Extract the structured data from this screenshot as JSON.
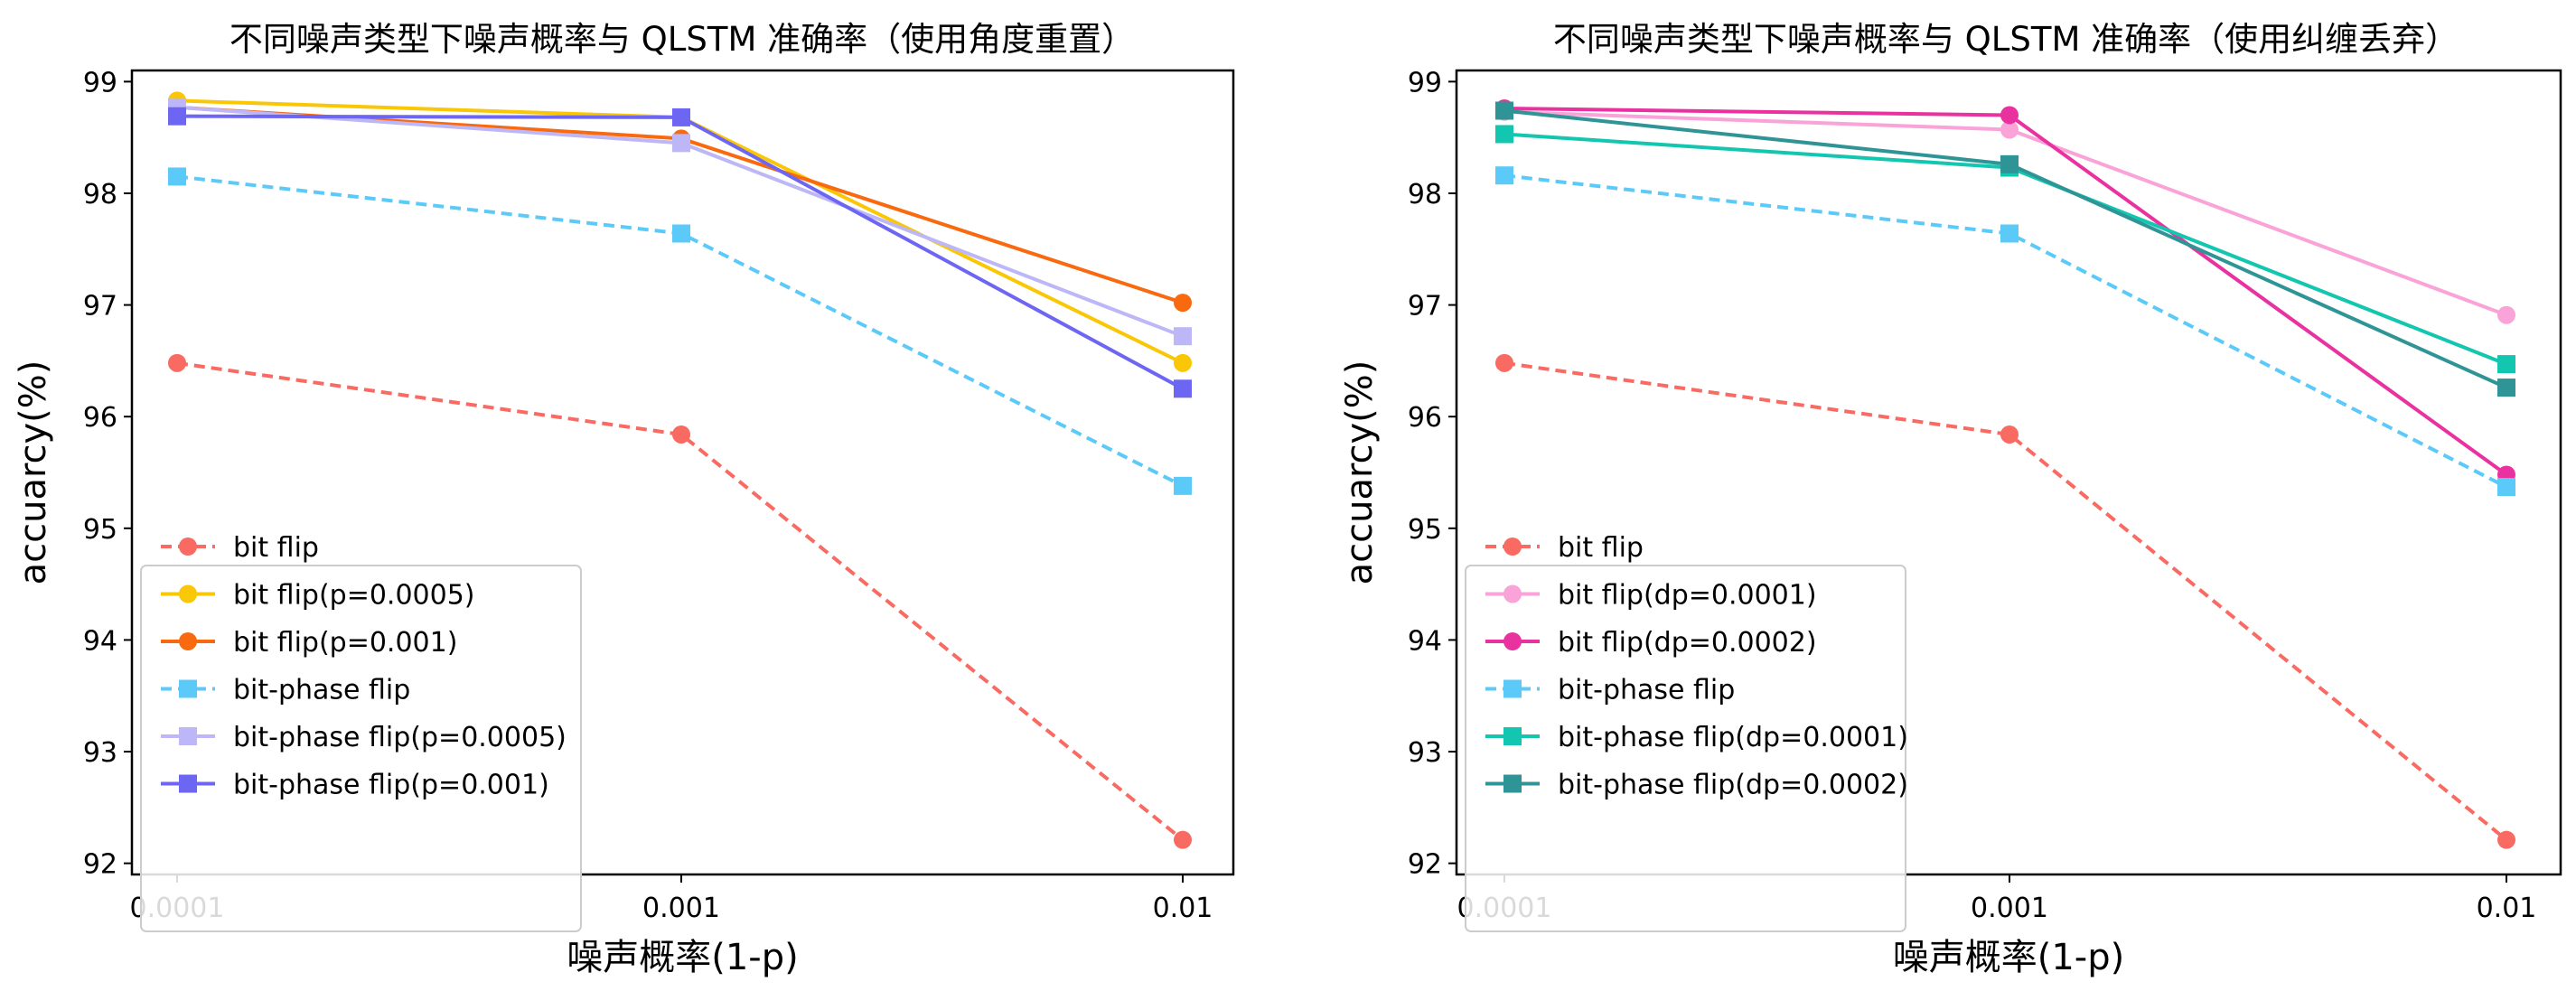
{
  "chart_data": [
    {
      "type": "line",
      "title": "不同噪声类型下噪声概率与 QLSTM 准确率（使用角度重置）",
      "xlabel": "噪声概率(1-p)",
      "ylabel": "accuarcy(%)",
      "x": [
        "0.0001",
        "0.001",
        "0.01"
      ],
      "xscale": "log",
      "ylim": [
        91.9,
        99.1
      ],
      "yticks": [
        92,
        93,
        94,
        95,
        96,
        97,
        98,
        99
      ],
      "grid": false,
      "legend_position": "lower-left",
      "series": [
        {
          "name": "bit flip",
          "values": [
            96.48,
            95.84,
            92.21
          ],
          "color": "#f96a63",
          "linestyle": "dashed",
          "marker": "circle"
        },
        {
          "name": "bit flip(p=0.0005)",
          "values": [
            98.83,
            98.68,
            96.48
          ],
          "color": "#f9c706",
          "linestyle": "solid",
          "marker": "circle"
        },
        {
          "name": "bit flip(p=0.001)",
          "values": [
            98.77,
            98.49,
            97.02
          ],
          "color": "#f9690f",
          "linestyle": "solid",
          "marker": "circle"
        },
        {
          "name": "bit-phase flip",
          "values": [
            98.15,
            97.64,
            95.38
          ],
          "color": "#5ccaf9",
          "linestyle": "dashed",
          "marker": "square"
        },
        {
          "name": "bit-phase flip(p=0.0005)",
          "values": [
            98.77,
            98.45,
            96.72
          ],
          "color": "#bdb7f7",
          "linestyle": "solid",
          "marker": "square"
        },
        {
          "name": "bit-phase flip(p=0.001)",
          "values": [
            98.69,
            98.68,
            96.25
          ],
          "color": "#6d66f3",
          "linestyle": "solid",
          "marker": "square"
        }
      ]
    },
    {
      "type": "line",
      "title": "不同噪声类型下噪声概率与 QLSTM 准确率（使用纠缠丢弃）",
      "xlabel": "噪声概率(1-p)",
      "ylabel": "accuarcy(%)",
      "x": [
        "0.0001",
        "0.001",
        "0.01"
      ],
      "xscale": "log",
      "ylim": [
        91.9,
        99.1
      ],
      "yticks": [
        92,
        93,
        94,
        95,
        96,
        97,
        98,
        99
      ],
      "grid": false,
      "legend_position": "lower-left",
      "series": [
        {
          "name": "bit flip",
          "values": [
            96.48,
            95.84,
            92.21
          ],
          "color": "#f96a63",
          "linestyle": "dashed",
          "marker": "circle"
        },
        {
          "name": "bit flip(dp=0.0001)",
          "values": [
            98.73,
            98.57,
            96.91
          ],
          "color": "#f9a3d8",
          "linestyle": "solid",
          "marker": "circle"
        },
        {
          "name": "bit flip(dp=0.0002)",
          "values": [
            98.76,
            98.7,
            95.48
          ],
          "color": "#e9329f",
          "linestyle": "solid",
          "marker": "circle"
        },
        {
          "name": "bit-phase flip",
          "values": [
            98.16,
            97.64,
            95.37
          ],
          "color": "#5ccaf9",
          "linestyle": "dashed",
          "marker": "square"
        },
        {
          "name": "bit-phase flip(dp=0.0001)",
          "values": [
            98.53,
            98.23,
            96.47
          ],
          "color": "#12c6b0",
          "linestyle": "solid",
          "marker": "square"
        },
        {
          "name": "bit-phase flip(dp=0.0002)",
          "values": [
            98.74,
            98.26,
            96.26
          ],
          "color": "#2f9496",
          "linestyle": "solid",
          "marker": "square"
        }
      ]
    }
  ]
}
